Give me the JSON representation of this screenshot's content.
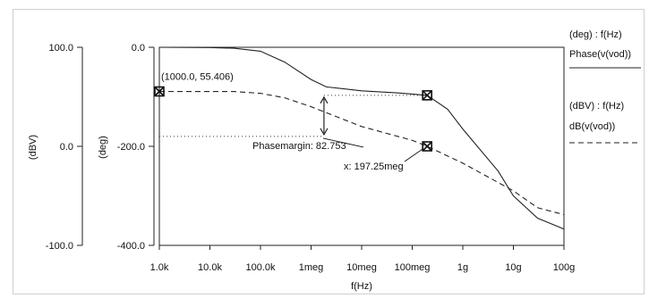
{
  "chart_data": {
    "type": "line",
    "xscale": "log",
    "xlabel": "f(Hz)",
    "x_ticks": [
      "1.0k",
      "10.0k",
      "100.0k",
      "1meg",
      "10meg",
      "100meg",
      "1g",
      "10g",
      "100g"
    ],
    "xlim": [
      1000,
      100000000000
    ],
    "axes": {
      "deg": {
        "label": "(deg)",
        "ticks": [
          "0.0",
          "-200.0",
          "-400.0"
        ],
        "ylim": [
          -400,
          0
        ]
      },
      "dbv": {
        "label": "(dBV)",
        "ticks": [
          "100.0",
          "0.0",
          "-100.0"
        ],
        "ylim": [
          -100,
          100
        ]
      }
    },
    "series": [
      {
        "name": "Phase(v(vod))",
        "unit_label": "(deg) : f(Hz)",
        "axis": "deg",
        "style": "solid",
        "points": [
          [
            1000,
            0
          ],
          [
            10000,
            -0.5
          ],
          [
            30000,
            -2
          ],
          [
            100000,
            -8
          ],
          [
            300000,
            -30
          ],
          [
            1000000,
            -65
          ],
          [
            2000000,
            -80
          ],
          [
            10000000,
            -88
          ],
          [
            50000000,
            -92
          ],
          [
            197250000,
            -97
          ],
          [
            500000000,
            -125
          ],
          [
            1000000000,
            -165
          ],
          [
            5000000000,
            -250
          ],
          [
            10000000000,
            -300
          ],
          [
            30000000000,
            -345
          ],
          [
            100000000000,
            -367
          ]
        ]
      },
      {
        "name": "dB(v(vod))",
        "unit_label": "(dBV) : f(Hz)",
        "axis": "dbv",
        "style": "dashed",
        "points": [
          [
            1000,
            55.406
          ],
          [
            30000,
            55.3
          ],
          [
            100000,
            53.5
          ],
          [
            300000,
            49
          ],
          [
            1000000,
            40
          ],
          [
            10000000,
            20
          ],
          [
            100000000,
            6
          ],
          [
            197250000,
            0
          ],
          [
            1000000000,
            -17
          ],
          [
            10000000000,
            -45
          ],
          [
            30000000000,
            -62
          ],
          [
            100000000000,
            -69
          ]
        ]
      }
    ],
    "annotations": {
      "cursor_label": "(1000.0, 55.406)",
      "phase_margin_label": "Phasemargin: 82.753",
      "x_cursor_label": "x: 197.25meg"
    },
    "grid": false
  }
}
